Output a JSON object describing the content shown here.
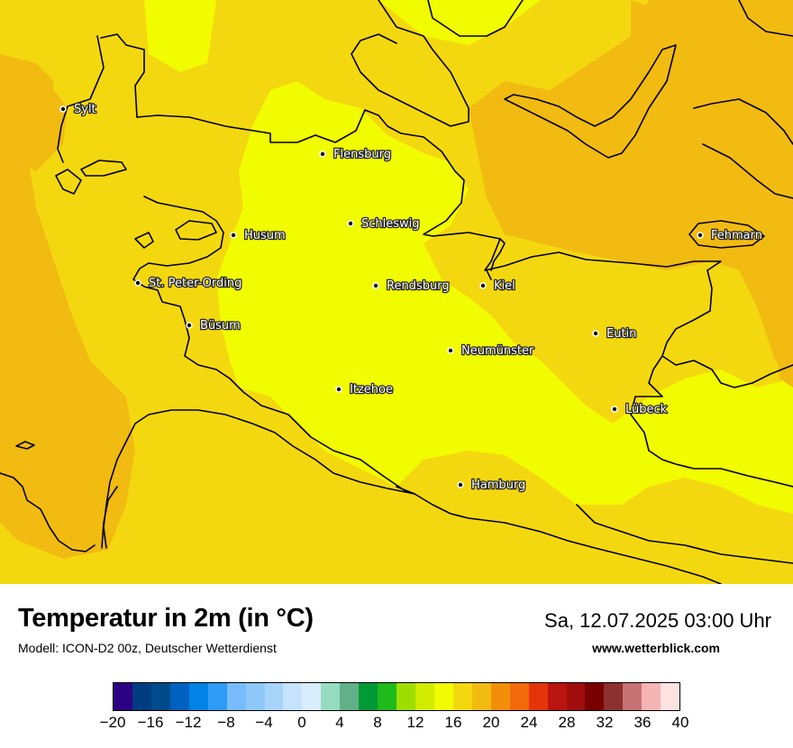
{
  "title": "Temperatur in 2m (in °C)",
  "subtitle": "Modell: ICON-D2 00z, Deutscher Wetterdienst",
  "datetime": "Sa, 12.07.2025 03:00 Uhr",
  "website": "www.wetterblick.com",
  "colors": {
    "yellow": "#f2fc00",
    "light_orange": "#f4d80f",
    "orange": "#f2bb12",
    "coast": "#000000"
  },
  "cities": [
    {
      "name": "Sylt"
    },
    {
      "name": "Flensburg"
    },
    {
      "name": "Schleswig"
    },
    {
      "name": "Husum"
    },
    {
      "name": "Fehmarn"
    },
    {
      "name": "St. Peter-Ording"
    },
    {
      "name": "Rendsburg"
    },
    {
      "name": "Kiel"
    },
    {
      "name": "Büsum"
    },
    {
      "name": "Eutin"
    },
    {
      "name": "Neumünster"
    },
    {
      "name": "Itzehoe"
    },
    {
      "name": "Lübeck"
    },
    {
      "name": "Hamburg"
    }
  ],
  "legend": {
    "colors": [
      "#2b0082",
      "#003c82",
      "#004a8a",
      "#0061c2",
      "#0083e6",
      "#2e9cf6",
      "#76bcfa",
      "#8ec8fa",
      "#a8d4fb",
      "#c6e3fd",
      "#daedfd",
      "#95dcc0",
      "#62b088",
      "#009934",
      "#1fba1b",
      "#9dde00",
      "#d2ec00",
      "#f2fc00",
      "#f4d80f",
      "#f2bb12",
      "#f28e0a",
      "#f2690c",
      "#e6340a",
      "#ba1410",
      "#a10d0d",
      "#7a0000",
      "#8f3030",
      "#c87373",
      "#f5b4b4",
      "#fde2e2"
    ],
    "ticks": [
      "−20",
      "−16",
      "−12",
      "−8",
      "−4",
      "0",
      "4",
      "8",
      "12",
      "16",
      "20",
      "24",
      "28",
      "32",
      "36",
      "40"
    ]
  }
}
